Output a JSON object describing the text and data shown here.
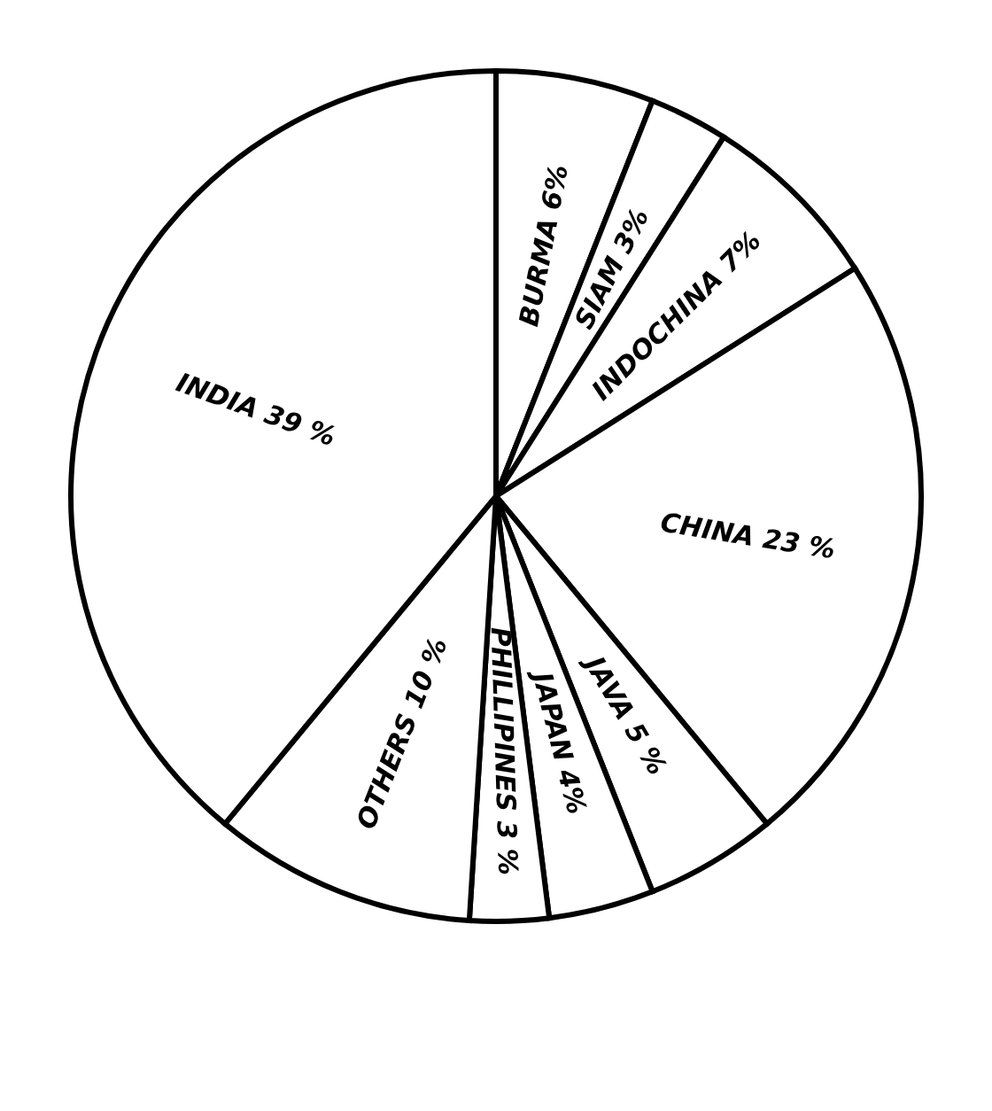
{
  "chart_data": {
    "type": "pie",
    "categories": [
      "BURMA",
      "SIAM",
      "INDOCHINA",
      "CHINA",
      "JAVA",
      "JAPAN",
      "PHILLIPINES",
      "OTHERS",
      "INDIA"
    ],
    "values": [
      6,
      3,
      7,
      23,
      5,
      4,
      3,
      10,
      39
    ],
    "value_labels": [
      "6%",
      "3%",
      "7%",
      "23 %",
      "5 %",
      "4%",
      "3 %",
      "10 %",
      "39 %"
    ],
    "colors": [
      "#ffffff",
      "#ffffff",
      "#ffffff",
      "#ffffff",
      "#ffffff",
      "#ffffff",
      "#ffffff",
      "#ffffff",
      "#ffffff"
    ]
  }
}
